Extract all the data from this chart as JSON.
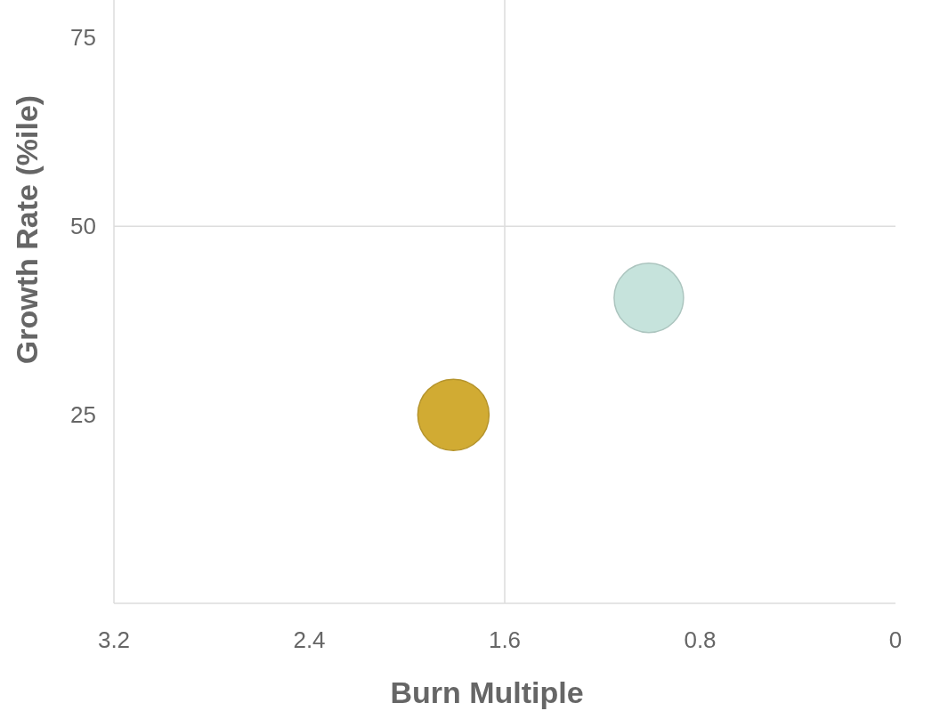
{
  "chart_data": {
    "type": "bubble",
    "xlabel": "Burn Multiple",
    "ylabel": "Growth Rate (%ile)",
    "x": [
      1.81,
      1.01
    ],
    "values": [
      25,
      40.5
    ],
    "sizes": [
      1,
      0.95
    ],
    "colors": [
      "#d1ab33",
      "#c6e3dc"
    ],
    "xlim": [
      3.2,
      0
    ],
    "xticks": [
      3.2,
      2.4,
      1.6,
      0.8,
      0
    ],
    "ylim": [
      0,
      80
    ],
    "yticks": [
      25,
      50,
      75
    ],
    "ref_lines": [
      {
        "axis": "x",
        "value": 1.6,
        "color": "#dddddd"
      },
      {
        "axis": "y",
        "value": 50,
        "color": "#dddddd"
      }
    ],
    "grid": false
  }
}
